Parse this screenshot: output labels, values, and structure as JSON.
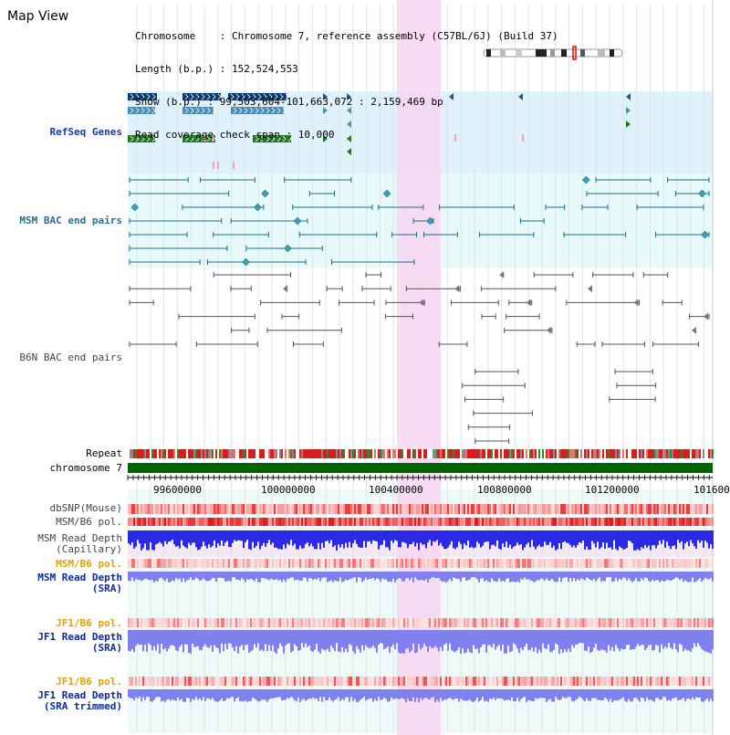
{
  "title": "Map View",
  "header": {
    "chromosome": "Chromosome    : Chromosome 7, reference assembly (C57BL/6J) (Build 37)",
    "length": "Length (b.p.) : 152,524,553",
    "show": "Show (b.p.) : 99,503,604-101,663,072 : 2,159,469 bp",
    "coverage": "Read coverage check span : 10,000"
  },
  "tracks": {
    "refseq": "RefSeq Genes",
    "msm_bac": "MSM BAC end pairs",
    "b6n_bac": "B6N BAC end pairs",
    "repeat": "Repeat",
    "chromosome": "chromosome 7",
    "dbsnp": "dbSNP(Mouse)",
    "msm_b6_pol_1": "MSM/B6 pol.",
    "msm_depth_cap": "MSM Read Depth\n(Capillary)",
    "msm_b6_pol_2": "MSM/B6 pol.",
    "msm_depth_sra": "MSM Read Depth\n(SRA)",
    "jf1_b6_pol_1": "JF1/B6 pol.",
    "jf1_depth_sra": "JF1 Read Depth\n(SRA)",
    "jf1_b6_pol_2": "JF1/B6 pol.",
    "jf1_depth_trim": "JF1 Read Depth\n(SRA trimmed)"
  },
  "axis": {
    "ticks": [
      "99600000",
      "100000000",
      "100400000",
      "100800000",
      "101200000",
      "101600"
    ]
  },
  "colors": {
    "refseq_bg": "#dff2fb",
    "msm_bg": "#e6fafa",
    "highlight": "#f7d6f2",
    "chromosome": "#006400",
    "refseq_blue": "#0a3b6e",
    "refseq_mid": "#4a8fb8",
    "refseq_green": "#1e7a1e",
    "msm_line": "#1d6f86",
    "b6n_line": "#555555"
  }
}
